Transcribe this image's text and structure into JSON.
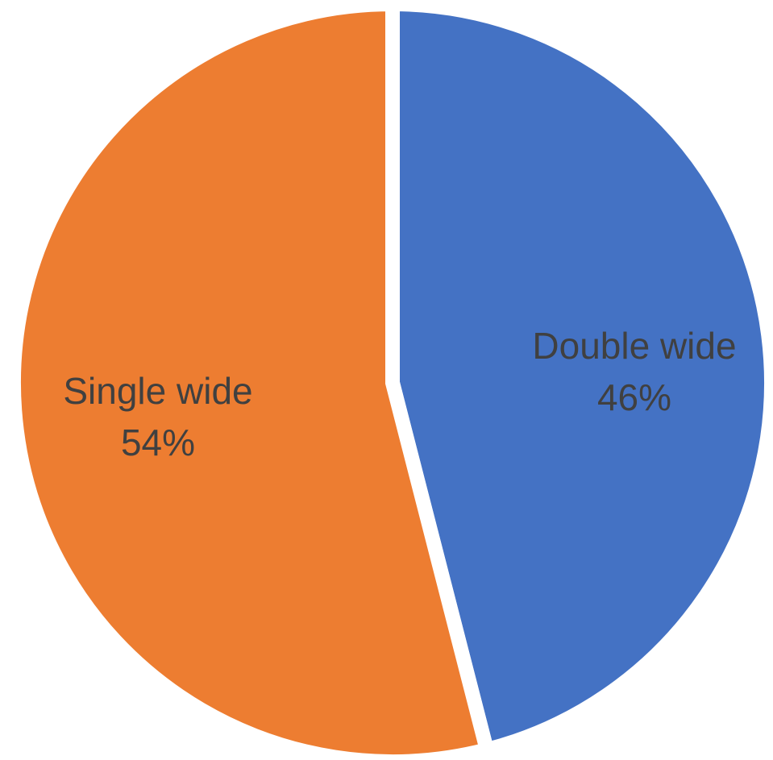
{
  "chart_data": {
    "type": "pie",
    "start_angle_deg": 0,
    "direction": "clockwise",
    "slices": [
      {
        "category": "Double wide",
        "value": 46,
        "percent_label": "46%",
        "color": "#4472C4"
      },
      {
        "category": "Single wide",
        "value": 54,
        "percent_label": "54%",
        "color": "#ED7D31"
      }
    ],
    "separator_color": "#ffffff",
    "label_color": "#404040"
  }
}
